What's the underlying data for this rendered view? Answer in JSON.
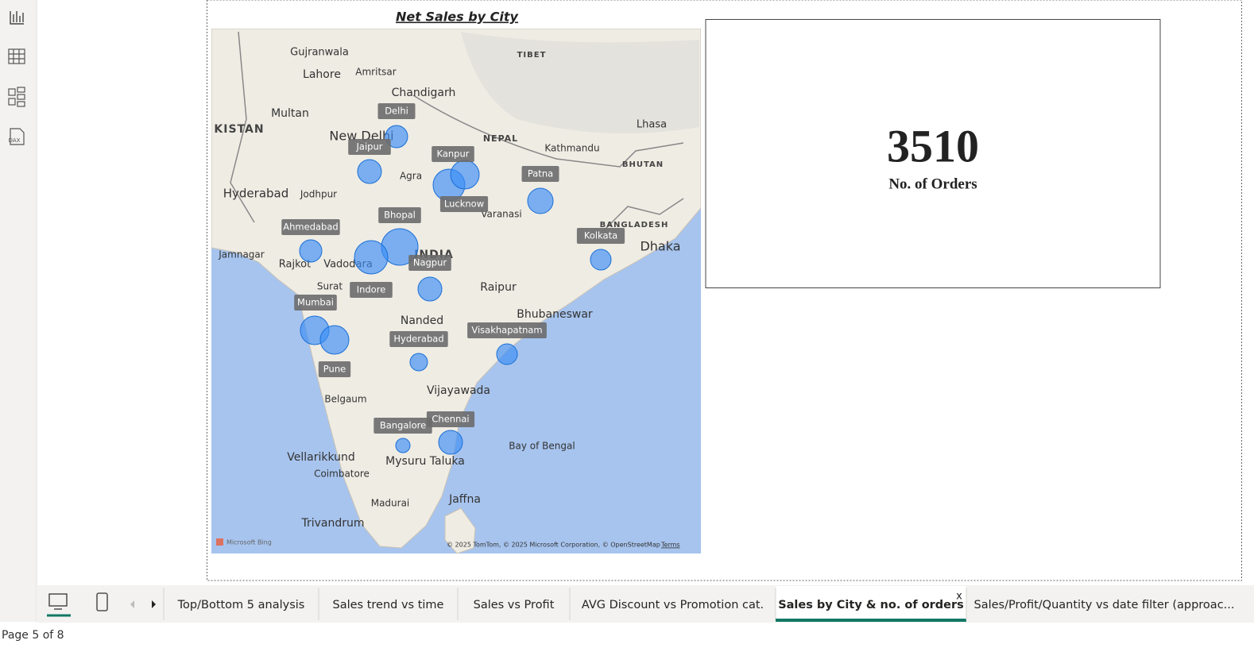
{
  "map_visual": {
    "title": "Net Sales by City",
    "cities": [
      "Delhi",
      "Jaipur",
      "Kanpur",
      "Lucknow",
      "Patna",
      "Kolkata",
      "Ahmedabad",
      "Bhopal",
      "Nagpur",
      "Indore",
      "Mumbai",
      "Pune",
      "Hyderabad",
      "Visakhapatnam",
      "Chennai",
      "Bangalore"
    ],
    "place_labels": [
      "Gujranwala",
      "Lahore",
      "Multan",
      "Amritsar",
      "Chandigarh",
      "TIBET",
      "Lhasa",
      "NEPAL",
      "Kathmandu",
      "BHUTAN",
      "New Delhi",
      "Hyderabad",
      "Jodhpur",
      "Agra",
      "Varanasi",
      "BANGLADESH",
      "Dhaka",
      "Jamnagar",
      "Rajkot",
      "Vadodara",
      "INDIA",
      "Surat",
      "Raipur",
      "Bhubaneswar",
      "Nanded",
      "Vijayawada",
      "Bay of Bengal",
      "Vellarikkund",
      "Coimbatore",
      "Madurai",
      "Trivandrum",
      "Jaffna",
      "KISTAN",
      "Belgaum",
      "Mysuru Taluka"
    ],
    "logo": "Microsoft Bing",
    "attribution": "© 2025 TomTom, © 2025 Microsoft Corporation, © OpenStreetMap",
    "terms": "Terms"
  },
  "card_visual": {
    "value": 3510,
    "label": "No. of Orders"
  },
  "sidebar": {
    "dax_label": "DAX"
  },
  "tabs": {
    "items": [
      "Top/Bottom 5 analysis",
      "Sales trend vs time",
      "Sales vs Profit",
      "AVG Discount vs Promotion cat.",
      "Sales by City & no. of orders",
      "Sales/Profit/Quantity vs date filter (approac..."
    ],
    "active": 4,
    "close_label": "x"
  },
  "status_bar": {
    "page_label": "Page 5 of 8"
  }
}
